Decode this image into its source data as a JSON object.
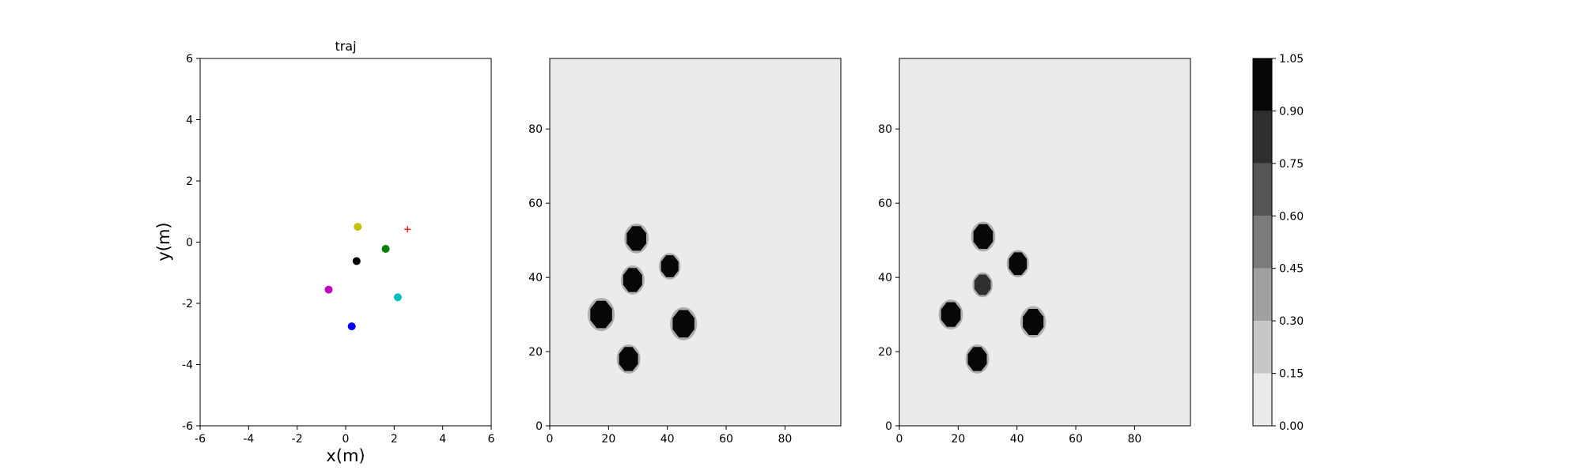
{
  "chart_data": [
    {
      "type": "scatter",
      "title": "traj",
      "xlabel": "x(m)",
      "ylabel": "y(m)",
      "xlim": [
        -6,
        6
      ],
      "ylim": [
        -6,
        6
      ],
      "xticks": [
        -6,
        -4,
        -2,
        0,
        2,
        4,
        6
      ],
      "yticks": [
        -6,
        -4,
        -2,
        0,
        2,
        4,
        6
      ],
      "series": [
        {
          "marker": "circle",
          "color": "#bfbf00",
          "points": [
            [
              0.5,
              0.5
            ]
          ]
        },
        {
          "marker": "circle",
          "color": "#008000",
          "points": [
            [
              1.65,
              -0.22
            ]
          ]
        },
        {
          "marker": "circle",
          "color": "#000000",
          "points": [
            [
              0.45,
              -0.62
            ]
          ]
        },
        {
          "marker": "circle",
          "color": "#bf00bf",
          "points": [
            [
              -0.7,
              -1.55
            ]
          ]
        },
        {
          "marker": "circle",
          "color": "#00bfbf",
          "points": [
            [
              2.15,
              -1.8
            ]
          ]
        },
        {
          "marker": "circle",
          "color": "#0000ff",
          "points": [
            [
              0.25,
              -2.75
            ]
          ]
        },
        {
          "marker": "plus",
          "color": "#ff0000",
          "points": [
            [
              2.55,
              0.42
            ]
          ]
        }
      ]
    },
    {
      "type": "heatmap",
      "title": "",
      "xlim": [
        0,
        99
      ],
      "ylim": [
        0,
        99
      ],
      "xticks": [
        0,
        20,
        40,
        60,
        80
      ],
      "yticks": [
        0,
        20,
        40,
        60,
        80
      ],
      "background_value": 0.0,
      "blobs": [
        {
          "x": 29.5,
          "y": 50.5,
          "r": 3.6,
          "value": 1.0
        },
        {
          "x": 40.8,
          "y": 43.0,
          "r": 3.2,
          "value": 1.0
        },
        {
          "x": 28.2,
          "y": 39.3,
          "r": 3.5,
          "value": 1.0
        },
        {
          "x": 17.5,
          "y": 30.0,
          "r": 4.0,
          "value": 1.0
        },
        {
          "x": 45.5,
          "y": 27.5,
          "r": 4.0,
          "value": 1.0
        },
        {
          "x": 26.8,
          "y": 18.0,
          "r": 3.5,
          "value": 1.0
        }
      ]
    },
    {
      "type": "heatmap",
      "title": "",
      "xlim": [
        0,
        99
      ],
      "ylim": [
        0,
        99
      ],
      "xticks": [
        0,
        20,
        40,
        60,
        80
      ],
      "yticks": [
        0,
        20,
        40,
        60,
        80
      ],
      "background_value": 0.0,
      "blobs": [
        {
          "x": 28.5,
          "y": 51.0,
          "r": 3.6,
          "value": 1.0
        },
        {
          "x": 40.3,
          "y": 43.7,
          "r": 3.3,
          "value": 1.0
        },
        {
          "x": 28.3,
          "y": 38.0,
          "r": 3.0,
          "value": 0.85
        },
        {
          "x": 17.5,
          "y": 30.0,
          "r": 3.6,
          "value": 1.0
        },
        {
          "x": 45.5,
          "y": 28.0,
          "r": 3.8,
          "value": 1.0
        },
        {
          "x": 26.5,
          "y": 18.0,
          "r": 3.5,
          "value": 1.0
        }
      ]
    }
  ],
  "colorbar": {
    "levels": [
      0.0,
      0.15,
      0.3,
      0.45,
      0.6,
      0.75,
      0.9,
      1.05
    ],
    "tick_labels": [
      "0.00",
      "0.15",
      "0.30",
      "0.45",
      "0.60",
      "0.75",
      "0.90",
      "1.05"
    ],
    "colors": [
      "#ebebeb",
      "#c7c7c7",
      "#a0a0a0",
      "#7b7b7b",
      "#555555",
      "#2f2f2f",
      "#070707"
    ]
  }
}
